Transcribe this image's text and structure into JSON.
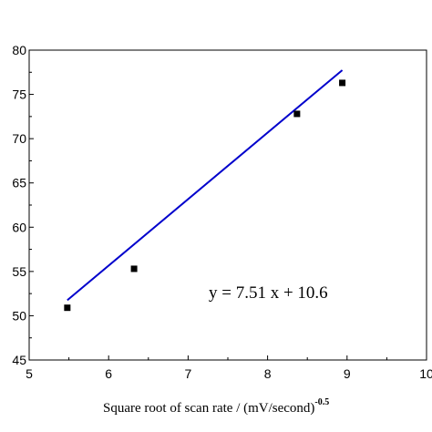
{
  "chart_data": {
    "type": "scatter",
    "title": "",
    "xlabel": "Square root of scan rate / (mV/second)",
    "xlabel_superscript": "-0.5",
    "ylabel": "",
    "xlim": [
      5,
      10
    ],
    "ylim": [
      45,
      80
    ],
    "x_ticks": [
      5,
      6,
      7,
      8,
      9,
      10
    ],
    "y_ticks": [
      45,
      50,
      55,
      60,
      65,
      70,
      75,
      80
    ],
    "grid": false,
    "points": [
      {
        "x": 5.48,
        "y": 50.9
      },
      {
        "x": 6.32,
        "y": 55.3
      },
      {
        "x": 8.37,
        "y": 72.8
      },
      {
        "x": 8.94,
        "y": 76.3
      }
    ],
    "fit_line": {
      "slope": 7.51,
      "intercept": 10.6,
      "x_range": [
        5.48,
        8.94
      ],
      "color": "#0000cc"
    },
    "annotation": "y = 7.51 x + 10.6",
    "marker_color": "#000000"
  }
}
